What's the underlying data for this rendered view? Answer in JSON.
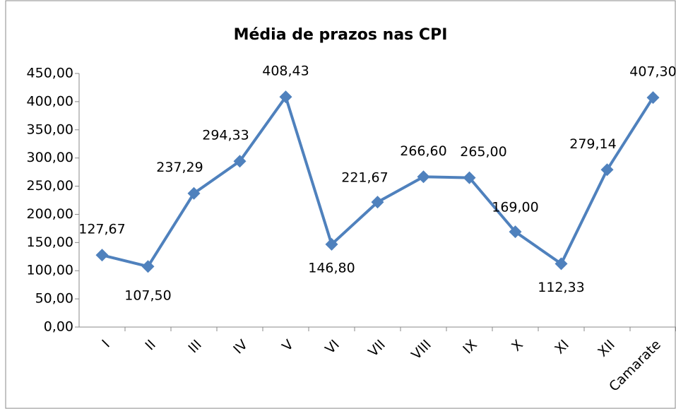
{
  "chart_data": {
    "type": "line",
    "title": "Média de prazos nas CPI",
    "categories": [
      "I",
      "II",
      "III",
      "IV",
      "V",
      "VI",
      "VII",
      "VIII",
      "IX",
      "X",
      "XI",
      "XII",
      "Camarate"
    ],
    "series": [
      {
        "name": "Média de prazos",
        "color": "#4f81bd",
        "values": [
          127.67,
          107.5,
          237.29,
          294.33,
          408.43,
          146.8,
          221.67,
          266.6,
          265,
          169,
          112.33,
          279.14,
          407.3
        ],
        "value_labels": [
          "127,67",
          "107,50",
          "237,29",
          "294,33",
          "408,43",
          "146,80",
          "221,67",
          "266,60",
          "265,00",
          "169,00",
          "112,33",
          "279,14",
          "407,30"
        ]
      }
    ],
    "ylim": [
      0,
      450
    ],
    "yticks": [
      {
        "value": 0,
        "label": "0,00"
      },
      {
        "value": 50,
        "label": "50,00"
      },
      {
        "value": 100,
        "label": "100,00"
      },
      {
        "value": 150,
        "label": "150,00"
      },
      {
        "value": 200,
        "label": "200,00"
      },
      {
        "value": 250,
        "label": "250,00"
      },
      {
        "value": 300,
        "label": "300,00"
      },
      {
        "value": 350,
        "label": "350,00"
      },
      {
        "value": 400,
        "label": "400,00"
      },
      {
        "value": 450,
        "label": "450,00"
      }
    ],
    "grid": false
  }
}
